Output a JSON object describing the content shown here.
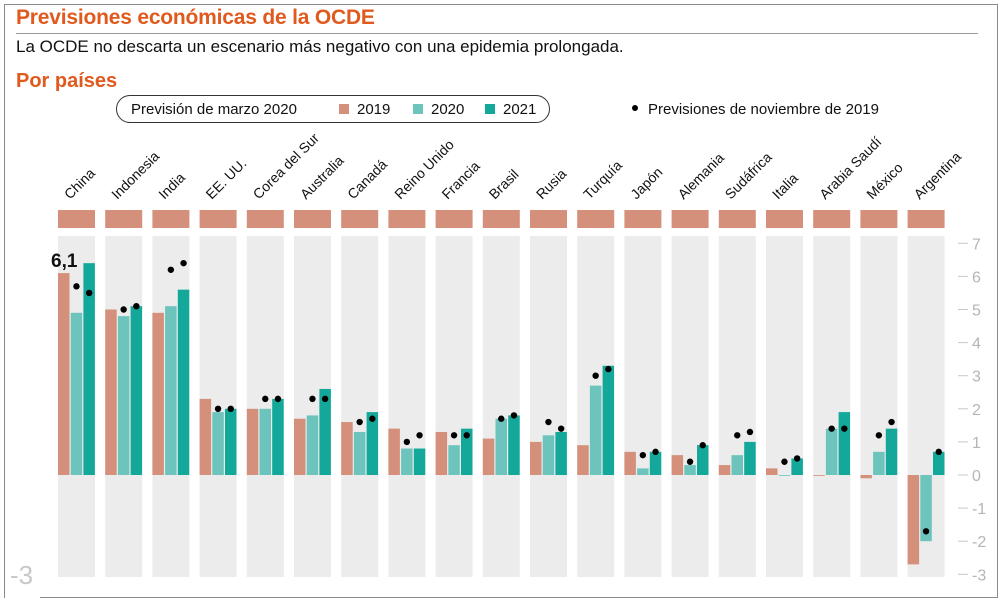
{
  "header": {
    "title": "Previsiones económicas de la OCDE",
    "subtitle": "La OCDE no descarta un escenario más negativo con una epidemia prolongada.",
    "section": "Por países"
  },
  "legend": {
    "group_label": "Previsión de marzo 2020",
    "items": [
      {
        "label": "2019",
        "color": "#d4907a"
      },
      {
        "label": "2020",
        "color": "#6cc4bd"
      },
      {
        "label": "2021",
        "color": "#13a899"
      }
    ],
    "dot_label": "Previsiones de noviembre de 2019"
  },
  "corner_label": "-3",
  "chart_data": {
    "type": "bar",
    "title": "Previsiones económicas de la OCDE",
    "subtitle": "La OCDE no descarta un escenario más negativo con una epidemia prolongada.",
    "xlabel": "",
    "ylabel": "",
    "ylim": [
      -3,
      7
    ],
    "yticks": [
      7,
      6,
      5,
      4,
      3,
      2,
      1,
      0,
      -1,
      -2,
      -3
    ],
    "ytick_labels": [
      "7",
      "6",
      "5",
      "4",
      "3",
      "2",
      "1",
      "0",
      "-1",
      "-2",
      "-3"
    ],
    "legend_position": "top",
    "grid": false,
    "categories": [
      "China",
      "Indonesia",
      "India",
      "EE. UU.",
      "Corea del Sur",
      "Australia",
      "Canadá",
      "Reino Unido",
      "Francia",
      "Brasil",
      "Rusia",
      "Turquía",
      "Japón",
      "Alemania",
      "Sudáfrica",
      "Italia",
      "Arabia Saudí",
      "México",
      "Argentina"
    ],
    "series": [
      {
        "name": "2019",
        "color": "#d4907a",
        "values": [
          6.1,
          5.0,
          4.9,
          2.3,
          2.0,
          1.7,
          1.6,
          1.4,
          1.3,
          1.1,
          1.0,
          0.9,
          0.7,
          0.6,
          0.3,
          0.2,
          0.0,
          -0.1,
          -2.7
        ]
      },
      {
        "name": "2020",
        "color": "#6cc4bd",
        "values": [
          4.9,
          4.8,
          5.1,
          1.9,
          2.0,
          1.8,
          1.3,
          0.8,
          0.9,
          1.7,
          1.2,
          2.7,
          0.2,
          0.3,
          0.6,
          0.0,
          1.4,
          0.7,
          -2.0
        ]
      },
      {
        "name": "2021",
        "color": "#13a899",
        "values": [
          6.4,
          5.1,
          5.6,
          2.0,
          2.3,
          2.6,
          1.9,
          0.8,
          1.4,
          1.8,
          1.3,
          3.3,
          0.7,
          0.9,
          1.0,
          0.5,
          1.9,
          1.4,
          0.7
        ]
      }
    ],
    "dots": {
      "name": "Previsiones de noviembre de 2019",
      "series_2020": [
        5.7,
        5.0,
        6.2,
        2.0,
        2.3,
        2.3,
        1.6,
        1.0,
        1.2,
        1.7,
        1.6,
        3.0,
        0.6,
        0.4,
        1.2,
        0.4,
        1.4,
        1.2,
        -1.7
      ],
      "series_2021": [
        5.5,
        5.1,
        6.4,
        2.0,
        2.3,
        2.3,
        1.7,
        1.2,
        1.2,
        1.8,
        1.4,
        3.2,
        0.7,
        0.9,
        1.3,
        0.5,
        1.4,
        1.6,
        0.7
      ]
    },
    "annotations": [
      {
        "category": "China",
        "series": "2019",
        "text": "6,1"
      }
    ]
  }
}
